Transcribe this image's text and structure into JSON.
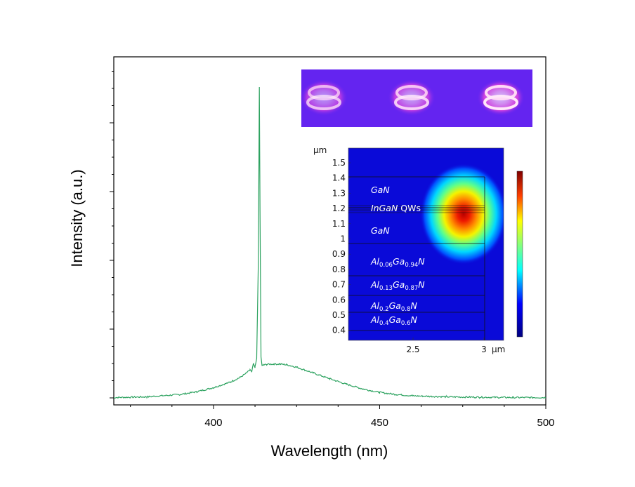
{
  "chart_data": {
    "type": "line",
    "xlabel": "Wavelength (nm)",
    "ylabel": "Intensity (a.u.)",
    "xlim": [
      370,
      500
    ],
    "ylim": [
      0,
      100
    ],
    "x_ticks": [
      400,
      450,
      500
    ],
    "grid": false,
    "series": [
      {
        "color": "#2ca25f",
        "x": [
          370,
          380,
          390,
          395,
          400,
          405,
          408,
          410,
          411,
          411.5,
          412,
          412.5,
          413,
          413.5,
          413.8,
          414,
          414.3,
          414.6,
          415,
          416,
          418,
          420,
          422,
          425,
          430,
          435,
          440,
          445,
          450,
          455,
          460,
          470,
          480,
          490,
          500
        ],
        "y": [
          0.1,
          0.3,
          1.0,
          1.8,
          3.0,
          4.6,
          6.0,
          7.3,
          8.2,
          7.5,
          10.0,
          9.0,
          11.5,
          40.0,
          91.0,
          55.0,
          12.0,
          9.5,
          9.6,
          9.8,
          9.9,
          9.9,
          9.7,
          9.0,
          7.3,
          5.6,
          4.0,
          2.6,
          1.6,
          1.0,
          0.6,
          0.3,
          0.2,
          0.1,
          0.1
        ]
      }
    ],
    "inset_top": {
      "type": "image",
      "background": "#6424f0",
      "glow_color": "#ff4dd8"
    },
    "inset_profile": {
      "type": "heatmap",
      "y_unit": "µm",
      "x_unit": "µm",
      "y_ticks": [
        "1.5",
        "1.4",
        "1.3",
        "1.2",
        "1.1",
        "1",
        "0.9",
        "0.8",
        "0.7",
        "0.6",
        "0.5",
        "0.4"
      ],
      "x_ticks": [
        "2.5",
        "3"
      ],
      "layers": [
        {
          "main": "GaN",
          "sub": "",
          "rest": ""
        },
        {
          "main": "InGaN",
          "sub": "",
          "rest": " QWs"
        },
        {
          "main": "GaN",
          "sub": "",
          "rest": ""
        },
        {
          "main": "Al",
          "sub": "0.06",
          "main2": "Ga",
          "sub2": "0.94",
          "main3": "N"
        },
        {
          "main": "Al",
          "sub": "0.13",
          "main2": "Ga",
          "sub2": "0.87",
          "main3": "N"
        },
        {
          "main": "Al",
          "sub": "0.2",
          "main2": "Ga",
          "sub2": "0.8",
          "main3": "N"
        },
        {
          "main": "Al",
          "sub": "0.4",
          "main2": "Ga",
          "sub2": "0.6",
          "main3": "N"
        }
      ]
    }
  }
}
